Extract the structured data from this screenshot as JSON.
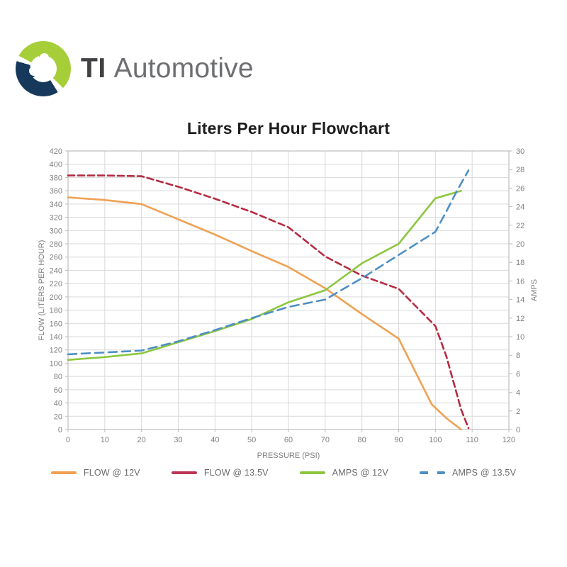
{
  "logo": {
    "brand_bold": "TI",
    "brand_rest": "Automotive"
  },
  "chart_data": {
    "type": "line",
    "title": "Liters Per Hour Flowchart",
    "xlabel": "PRESSURE (PSI)",
    "ylabel_left": "FLOW (LITERS PER HOUR)",
    "ylabel_right": "AMPS",
    "grid": true,
    "legend_position": "bottom",
    "x_axis": {
      "min": 0,
      "max": 120,
      "step": 10,
      "ticks": [
        0,
        10,
        20,
        30,
        40,
        50,
        60,
        70,
        80,
        90,
        100,
        110,
        120
      ]
    },
    "y_left": {
      "min": 0,
      "max": 420,
      "step": 20,
      "ticks": [
        0,
        20,
        40,
        60,
        80,
        100,
        120,
        140,
        160,
        180,
        200,
        220,
        240,
        260,
        280,
        300,
        320,
        340,
        360,
        380,
        400,
        420
      ]
    },
    "y_right": {
      "min": 0,
      "max": 30,
      "step": 2,
      "ticks": [
        0,
        2,
        4,
        6,
        8,
        10,
        12,
        14,
        16,
        18,
        20,
        22,
        24,
        26,
        28,
        30
      ]
    },
    "series": [
      {
        "name": "FLOW @ 12V",
        "axis": "left",
        "color": "#efa153",
        "dashed": false,
        "points": [
          [
            0,
            350
          ],
          [
            10,
            346
          ],
          [
            20,
            340
          ],
          [
            30,
            317
          ],
          [
            40,
            294
          ],
          [
            50,
            269
          ],
          [
            60,
            245
          ],
          [
            70,
            213
          ],
          [
            80,
            174
          ],
          [
            90,
            137
          ],
          [
            99,
            38
          ],
          [
            103,
            17
          ],
          [
            107,
            0
          ]
        ]
      },
      {
        "name": "FLOW @ 13.5V",
        "axis": "left",
        "color": "#b52b42",
        "dashed": true,
        "points": [
          [
            0,
            383
          ],
          [
            10,
            383
          ],
          [
            20,
            382
          ],
          [
            30,
            366
          ],
          [
            40,
            348
          ],
          [
            50,
            328
          ],
          [
            60,
            305
          ],
          [
            70,
            261
          ],
          [
            80,
            232
          ],
          [
            90,
            212
          ],
          [
            100,
            156
          ],
          [
            103,
            110
          ],
          [
            105,
            70
          ],
          [
            107,
            30
          ],
          [
            109,
            2
          ]
        ]
      },
      {
        "name": "AMPS @ 12V",
        "axis": "right",
        "color": "#8dc63f",
        "dashed": false,
        "points": [
          [
            0,
            7.5
          ],
          [
            10,
            7.8
          ],
          [
            20,
            8.2
          ],
          [
            30,
            9.4
          ],
          [
            40,
            10.6
          ],
          [
            50,
            11.9
          ],
          [
            60,
            13.7
          ],
          [
            70,
            15.0
          ],
          [
            80,
            17.9
          ],
          [
            90,
            20.0
          ],
          [
            100,
            24.9
          ],
          [
            107,
            25.7
          ]
        ]
      },
      {
        "name": "AMPS @ 13.5V",
        "axis": "right",
        "color": "#4e8fc4",
        "dashed": true,
        "points": [
          [
            0,
            8.1
          ],
          [
            10,
            8.3
          ],
          [
            20,
            8.5
          ],
          [
            30,
            9.5
          ],
          [
            40,
            10.7
          ],
          [
            50,
            12.0
          ],
          [
            60,
            13.2
          ],
          [
            70,
            14.0
          ],
          [
            80,
            16.3
          ],
          [
            90,
            18.8
          ],
          [
            100,
            21.3
          ],
          [
            103,
            23.5
          ],
          [
            106,
            25.8
          ],
          [
            109,
            27.9
          ]
        ]
      }
    ],
    "legend": [
      {
        "label": "FLOW @ 12V",
        "color": "#efa153",
        "dashed": false
      },
      {
        "label": "FLOW @ 13.5V",
        "color": "#be3455",
        "dashed": false
      },
      {
        "label": "AMPS @ 12V",
        "color": "#8dc63f",
        "dashed": false
      },
      {
        "label": "AMPS @ 13.5V",
        "color": "#4e8fc4",
        "dashed": true
      }
    ]
  },
  "colors": {
    "grid": "#d9d9d9",
    "plot_border": "#bdbdbd",
    "tick_text": "#7f7f7f",
    "axis_title_text": "#7f7f7f",
    "title_text": "#1c1c1c",
    "logo_green": "#a6ce39",
    "logo_navy": "#16395b",
    "brand_bold_text": "#414042",
    "brand_rest_text": "#6d6e71"
  }
}
